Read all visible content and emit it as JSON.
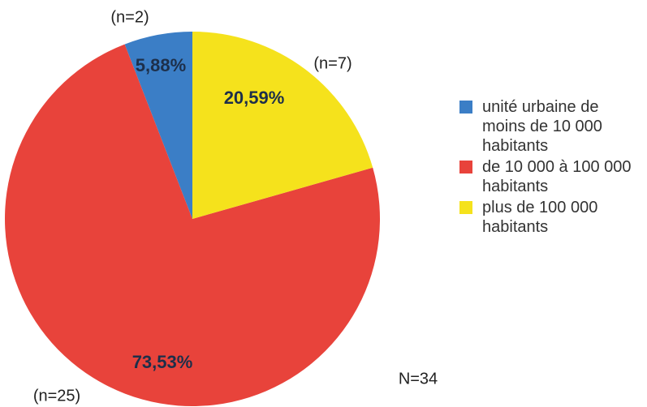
{
  "chart_data": {
    "type": "pie",
    "categories": [
      "unité urbaine de moins de 10 000 habitants",
      "de 10 000 à 100 000 habitants",
      "plus de 100 000 habitants"
    ],
    "values": [
      5.88,
      73.53,
      20.59
    ],
    "value_labels": [
      "5,88%",
      "73,53%",
      "20,59%"
    ],
    "colors": [
      "#3b7ec6",
      "#e8433b",
      "#f5e21c"
    ],
    "annotations": [
      "(n=2)",
      "(n=25)",
      "(n=7)",
      "N=34"
    ],
    "legend": "right"
  }
}
